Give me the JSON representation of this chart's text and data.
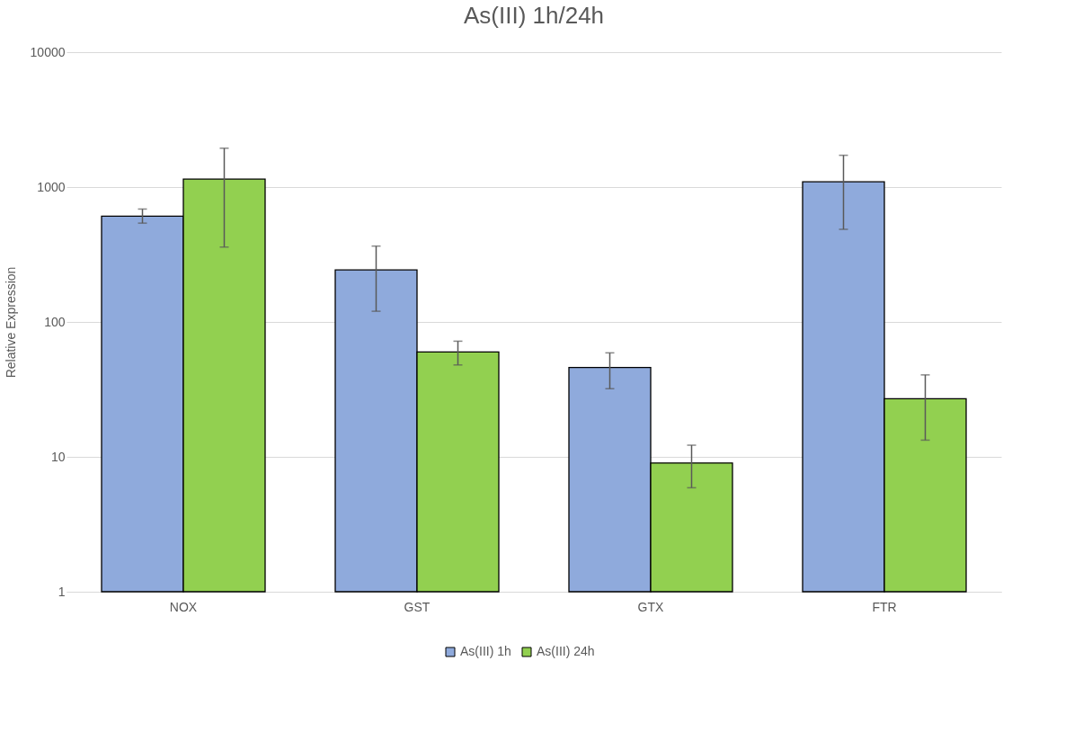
{
  "chart_data": {
    "type": "bar",
    "title": "As(III) 1h/24h",
    "ylabel": "Relative Expression",
    "categories": [
      "NOX",
      "GST",
      "GTX",
      "FTR"
    ],
    "series": [
      {
        "name": "As(III) 1h",
        "color": "#8faadc",
        "values": [
          608,
          243,
          46,
          1094
        ],
        "errors": [
          [
            540,
            687
          ],
          [
            120,
            365
          ],
          [
            32,
            59
          ],
          [
            486,
            1720
          ]
        ]
      },
      {
        "name": "As(III) 24h",
        "color": "#92d050",
        "values": [
          1145,
          60,
          9.0,
          27
        ],
        "errors": [
          [
            359,
            1940
          ],
          [
            48,
            72
          ],
          [
            5.9,
            12.2
          ],
          [
            13.3,
            40.5
          ]
        ]
      }
    ],
    "log": "y",
    "ylim": [
      1,
      10000
    ],
    "yticks": [
      1,
      10,
      100,
      1000,
      10000
    ],
    "grid": "y",
    "legend": "bottom"
  }
}
